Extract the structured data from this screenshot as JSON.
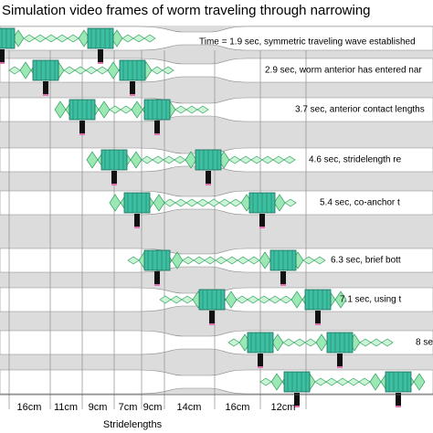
{
  "header": {
    "title": "Simulation video frames of worm traveling through narrowing"
  },
  "frames": [
    {
      "caption": "Time = 1.9 sec, symmetric traveling wave established"
    },
    {
      "caption": "2.9 sec, worm anterior has entered nar"
    },
    {
      "caption": "3.7 sec, anterior contact lengths"
    },
    {
      "caption": "4.6 sec, stridelength re"
    },
    {
      "caption": "5.4 sec, co-anchor t"
    },
    {
      "caption": "6.3 sec, brief bott"
    },
    {
      "caption": "7.1 sec, using t"
    },
    {
      "caption": "8 se"
    }
  ],
  "stridelengths": {
    "labels": [
      "16cm",
      "11cm",
      "9cm",
      "7cm",
      "9cm",
      "14cm",
      "16cm",
      "12cm"
    ],
    "title": "Stridelengths"
  }
}
